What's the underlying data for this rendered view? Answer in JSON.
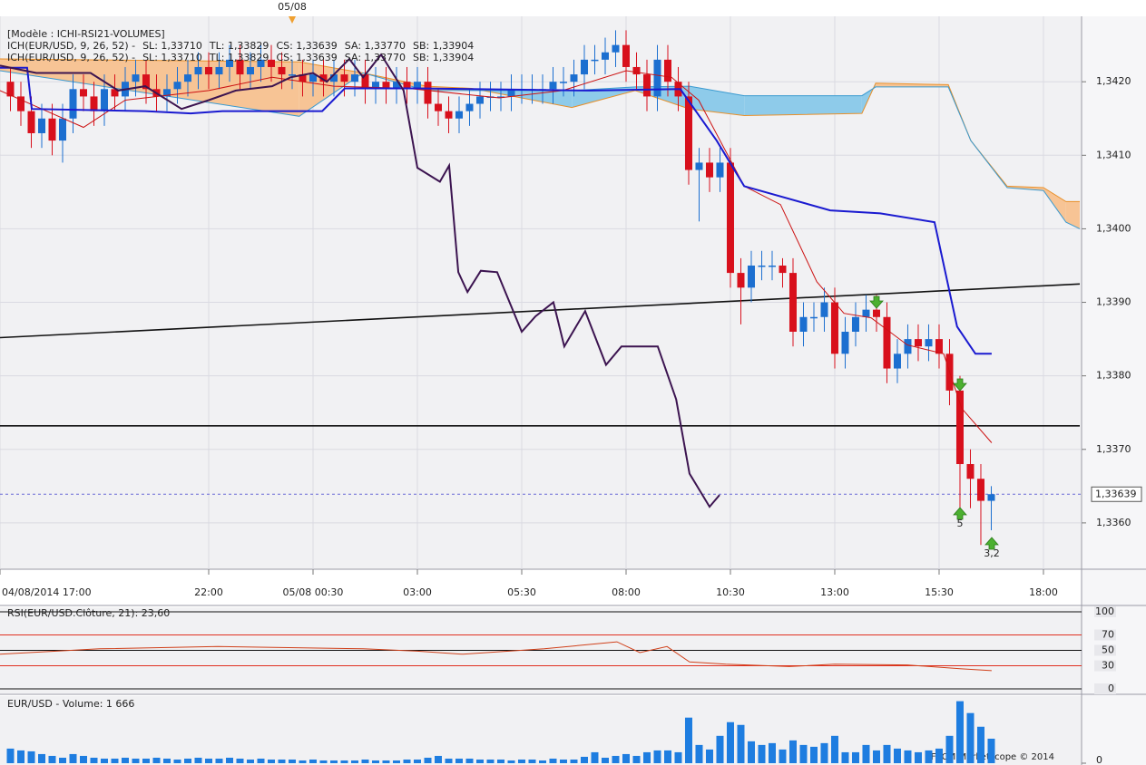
{
  "header": {
    "model": "[Modèle : ICHI-RSI21-VOLUMES]"
  },
  "footer": {
    "copyright": "FXCM Marketscope © 2014"
  },
  "chart_data": [
    {
      "type": "candlestick",
      "legend": [
        {
          "text": "ICH(EUR/USD, 9, 26, 52) -",
          "color": "#cc1111"
        },
        {
          "text": "SL: 1,33710",
          "color": "#cc1111"
        },
        {
          "text": "TL: 1,33829",
          "color": "#1a1ad0"
        },
        {
          "text": "CS: 1,33639",
          "color": "#3c1450"
        },
        {
          "text": "SA: 1,33770",
          "color": "#e8902a"
        },
        {
          "text": "SB: 1,33904",
          "color": "#3a9ad0"
        }
      ],
      "date_marker": {
        "value": 7,
        "label": "05/08"
      },
      "annotations": [
        "5",
        "3,2"
      ],
      "colors": {
        "up": "#1c6fd0",
        "down": "#d8101c"
      },
      "x": [
        0.25,
        0.5,
        0.75,
        1,
        1.25,
        1.5,
        1.75,
        2,
        2.25,
        2.5,
        2.75,
        3,
        3.25,
        3.5,
        3.75,
        4,
        4.25,
        4.5,
        4.75,
        5,
        5.25,
        5.5,
        5.75,
        6,
        6.25,
        6.5,
        6.75,
        7,
        7.25,
        7.5,
        7.75,
        8,
        8.25,
        8.5,
        8.75,
        9,
        9.25,
        9.5,
        9.75,
        10,
        10.25,
        10.5,
        10.75,
        11,
        11.25,
        11.5,
        11.75,
        12,
        12.25,
        12.5,
        12.75,
        13,
        13.25,
        13.5,
        13.75,
        14,
        14.25,
        14.5,
        14.75,
        15,
        15.25,
        15.5,
        15.75,
        16,
        16.25,
        16.5,
        16.75,
        17,
        17.25,
        17.5,
        17.75,
        18,
        18.25,
        18.5,
        18.75,
        19,
        19.25,
        19.5,
        19.75,
        20,
        20.25,
        20.5,
        20.75,
        21,
        21.25,
        21.5,
        21.75,
        22,
        22.25,
        22.5,
        22.75,
        23,
        23.25,
        23.5,
        23.75
      ],
      "open": [
        1.342,
        1.3418,
        1.3416,
        1.3413,
        1.3415,
        1.3412,
        1.3415,
        1.3419,
        1.3418,
        1.3416,
        1.3419,
        1.3418,
        1.342,
        1.3421,
        1.3419,
        1.3418,
        1.3419,
        1.342,
        1.3421,
        1.3422,
        1.3421,
        1.3422,
        1.3423,
        1.3421,
        1.3422,
        1.3423,
        1.3422,
        1.3421,
        1.3421,
        1.342,
        1.3421,
        1.342,
        1.3421,
        1.342,
        1.3421,
        1.3419,
        1.342,
        1.3419,
        1.342,
        1.3419,
        1.342,
        1.3417,
        1.3416,
        1.3415,
        1.3416,
        1.3417,
        1.3418,
        1.3418,
        1.3418,
        1.3419,
        1.3419,
        1.3419,
        1.3419,
        1.342,
        1.342,
        1.3421,
        1.3423,
        1.3423,
        1.3424,
        1.3425,
        1.3422,
        1.3421,
        1.3418,
        1.3423,
        1.342,
        1.3418,
        1.3408,
        1.3409,
        1.3407,
        1.3409,
        1.3394,
        1.3392,
        1.3395,
        1.3395,
        1.3395,
        1.3394,
        1.3386,
        1.3388,
        1.3388,
        1.339,
        1.3383,
        1.3386,
        1.3388,
        1.3389,
        1.3388,
        1.3381,
        1.3383,
        1.3385,
        1.3384,
        1.3385,
        1.3383,
        1.3378,
        1.3368,
        1.3366,
        1.3363
      ],
      "high": [
        1.3422,
        1.342,
        1.3418,
        1.3417,
        1.3417,
        1.3417,
        1.3421,
        1.3421,
        1.342,
        1.3421,
        1.3421,
        1.3422,
        1.3423,
        1.3423,
        1.3421,
        1.3421,
        1.3422,
        1.3423,
        1.3424,
        1.3424,
        1.3424,
        1.3425,
        1.3425,
        1.3424,
        1.3425,
        1.3425,
        1.3424,
        1.3423,
        1.3423,
        1.3423,
        1.3423,
        1.3423,
        1.3423,
        1.3423,
        1.3423,
        1.3422,
        1.3422,
        1.3422,
        1.3422,
        1.3422,
        1.3422,
        1.3419,
        1.3418,
        1.3418,
        1.3419,
        1.342,
        1.342,
        1.342,
        1.3421,
        1.3421,
        1.3421,
        1.3421,
        1.3422,
        1.3422,
        1.3423,
        1.3425,
        1.3425,
        1.3426,
        1.3427,
        1.3427,
        1.3424,
        1.3423,
        1.3425,
        1.3425,
        1.3422,
        1.342,
        1.3411,
        1.3411,
        1.3411,
        1.3411,
        1.3396,
        1.3397,
        1.3397,
        1.3397,
        1.3396,
        1.3396,
        1.339,
        1.339,
        1.3392,
        1.3392,
        1.3388,
        1.339,
        1.3391,
        1.3391,
        1.339,
        1.3385,
        1.3387,
        1.3387,
        1.3387,
        1.3387,
        1.3385,
        1.338,
        1.337,
        1.3368,
        1.3365
      ],
      "low": [
        1.3416,
        1.3414,
        1.3411,
        1.3411,
        1.341,
        1.3409,
        1.3413,
        1.3416,
        1.3414,
        1.3414,
        1.3416,
        1.3416,
        1.3418,
        1.3417,
        1.3416,
        1.3416,
        1.3417,
        1.3418,
        1.3419,
        1.3419,
        1.3419,
        1.342,
        1.3419,
        1.3419,
        1.342,
        1.342,
        1.3419,
        1.3419,
        1.3418,
        1.3418,
        1.3418,
        1.3418,
        1.3418,
        1.3418,
        1.3417,
        1.3417,
        1.3417,
        1.3417,
        1.3417,
        1.3417,
        1.3415,
        1.3414,
        1.3413,
        1.3413,
        1.3414,
        1.3415,
        1.3416,
        1.3416,
        1.3416,
        1.3417,
        1.3417,
        1.3417,
        1.3417,
        1.3418,
        1.3418,
        1.3419,
        1.3421,
        1.3421,
        1.3422,
        1.342,
        1.3419,
        1.3416,
        1.3416,
        1.3418,
        1.3416,
        1.3406,
        1.3401,
        1.3405,
        1.3405,
        1.3392,
        1.3387,
        1.339,
        1.3393,
        1.3393,
        1.3392,
        1.3384,
        1.3384,
        1.3386,
        1.3386,
        1.3381,
        1.3381,
        1.3384,
        1.3386,
        1.3386,
        1.3379,
        1.3379,
        1.3381,
        1.3382,
        1.3382,
        1.3381,
        1.3376,
        1.3362,
        1.3362,
        1.3357,
        1.3359
      ],
      "close": [
        1.3418,
        1.3416,
        1.3413,
        1.3415,
        1.3412,
        1.3415,
        1.3419,
        1.3418,
        1.3416,
        1.3419,
        1.3418,
        1.342,
        1.3421,
        1.3419,
        1.3418,
        1.3419,
        1.342,
        1.3421,
        1.3422,
        1.3421,
        1.3422,
        1.3423,
        1.3421,
        1.3422,
        1.3423,
        1.3422,
        1.3421,
        1.3421,
        1.342,
        1.3421,
        1.342,
        1.3421,
        1.342,
        1.3421,
        1.3419,
        1.342,
        1.3419,
        1.342,
        1.3419,
        1.342,
        1.3417,
        1.3416,
        1.3415,
        1.3416,
        1.3417,
        1.3418,
        1.3418,
        1.3418,
        1.3419,
        1.3419,
        1.3419,
        1.3419,
        1.342,
        1.342,
        1.3421,
        1.3423,
        1.3423,
        1.3424,
        1.3425,
        1.3422,
        1.3421,
        1.3418,
        1.3423,
        1.342,
        1.3418,
        1.3408,
        1.3409,
        1.3407,
        1.3409,
        1.3394,
        1.3392,
        1.3395,
        1.3395,
        1.3395,
        1.3394,
        1.3386,
        1.3388,
        1.3388,
        1.339,
        1.3383,
        1.3386,
        1.3388,
        1.3389,
        1.3388,
        1.3381,
        1.3383,
        1.3385,
        1.3384,
        1.3385,
        1.3383,
        1.3378,
        1.3368,
        1.3366,
        1.3363,
        1.33639
      ],
      "cloud": {
        "x": [
          0,
          7.17,
          8.7,
          10.22,
          11.3,
          13.7,
          15.22,
          16.52,
          17.83,
          20.65,
          20.98,
          22.72,
          23.26,
          24.13,
          25.0,
          25.54,
          25.87
        ],
        "sa": [
          1.34231,
          1.34227,
          1.34212,
          1.34194,
          1.34191,
          1.34165,
          1.34188,
          1.34163,
          1.34154,
          1.34157,
          1.34198,
          1.34196,
          1.3412,
          1.34058,
          1.34056,
          1.34037,
          1.34037
        ],
        "sb": [
          1.34215,
          1.34153,
          1.34212,
          1.34188,
          1.34188,
          1.34188,
          1.34193,
          1.34194,
          1.34181,
          1.34181,
          1.34193,
          1.34193,
          1.3412,
          1.34056,
          1.34052,
          1.34009,
          1.34
        ],
        "sa_color": "#e8902a",
        "sb_color": "#3a9ad0",
        "up_fill": "#f7c495",
        "down_fill": "#8ecbea"
      },
      "lines": [
        {
          "color": "#cc1111",
          "width": 1,
          "x": [
            0,
            1,
            2,
            3,
            5,
            6.52,
            8,
            9.78,
            11.96,
            13.48,
            15,
            16.09,
            16.74,
            17.83,
            18.7,
            19.57,
            20.22,
            20.87,
            21.74,
            22.61,
            23.04,
            23.76
          ],
          "values": [
            1.34188,
            1.34163,
            1.34138,
            1.34175,
            1.34188,
            1.34206,
            1.34194,
            1.34191,
            1.34178,
            1.34188,
            1.34215,
            1.34206,
            1.34175,
            1.34058,
            1.34033,
            1.33928,
            1.33885,
            1.33879,
            1.33842,
            1.3383,
            1.33756,
            1.33709
          ]
        },
        {
          "color": "#1a1ad0",
          "width": 2,
          "x": [
            0,
            0.65,
            0.76,
            3.48,
            4.57,
            5.33,
            7.72,
            8.26,
            10,
            14.13,
            16.3,
            17.17,
            17.83,
            19.89,
            21.09,
            22.39,
            22.93,
            23.37,
            23.76
          ],
          "values": [
            1.34219,
            1.34219,
            1.34163,
            1.3416,
            1.34157,
            1.3416,
            1.3416,
            1.34191,
            1.34191,
            1.34188,
            1.3419,
            1.3412,
            1.34058,
            1.34025,
            1.34021,
            1.34009,
            1.33867,
            1.3383,
            1.3383
          ]
        },
        {
          "color": "#3c1450",
          "width": 2,
          "x": [
            0,
            0.87,
            2.17,
            2.83,
            3.48,
            4.35,
            5,
            5.65,
            6.52,
            6.96,
            7.5,
            7.83,
            8.37,
            8.7,
            9.13,
            9.67,
            10,
            10.54,
            10.76,
            10.98,
            11.2,
            11.52,
            11.91,
            12.5,
            12.83,
            13.26,
            13.52,
            14.02,
            14.52,
            14.89,
            15.76,
            16.2,
            16.52,
            17,
            17.24
          ],
          "values": [
            1.34222,
            1.34212,
            1.34212,
            1.34188,
            1.34194,
            1.34163,
            1.34175,
            1.34188,
            1.34194,
            1.34206,
            1.34212,
            1.342,
            1.34231,
            1.34206,
            1.34237,
            1.34188,
            1.34083,
            1.34064,
            1.34086,
            1.33941,
            1.33914,
            1.33943,
            1.33941,
            1.3386,
            1.33881,
            1.339,
            1.3384,
            1.33888,
            1.33815,
            1.3384,
            1.3384,
            1.33768,
            1.33667,
            1.33622,
            1.33638
          ]
        }
      ],
      "trend_lines": [
        {
          "color": "#111111",
          "x": [
            0,
            25.87
          ],
          "values": [
            1.33852,
            1.33925
          ]
        },
        {
          "color": "#111111",
          "x": [
            0,
            25.87
          ],
          "values": [
            1.33732,
            1.33732
          ]
        }
      ],
      "last_price": {
        "value": 1.33639,
        "label": "1,33639"
      },
      "xlim": [
        0,
        25.87
      ],
      "ylim": [
        1.33537,
        1.34289
      ],
      "xticks": [
        {
          "value": 0,
          "label": "04/08/2014 17:00"
        },
        {
          "value": 5,
          "label": "22:00"
        },
        {
          "value": 7.5,
          "label": "05/08 00:30"
        },
        {
          "value": 10,
          "label": "03:00"
        },
        {
          "value": 12.5,
          "label": "05:30"
        },
        {
          "value": 15,
          "label": "08:00"
        },
        {
          "value": 17.5,
          "label": "10:30"
        },
        {
          "value": 20,
          "label": "13:00"
        },
        {
          "value": 22.5,
          "label": "15:30"
        },
        {
          "value": 25,
          "label": "18:00"
        }
      ],
      "yticks": [
        {
          "value": 1.342,
          "label": "1,3420"
        },
        {
          "value": 1.341,
          "label": "1,3410"
        },
        {
          "value": 1.34,
          "label": "1,3400"
        },
        {
          "value": 1.339,
          "label": "1,3390"
        },
        {
          "value": 1.338,
          "label": "1,3380"
        },
        {
          "value": 1.337,
          "label": "1,3370"
        },
        {
          "value": 1.336,
          "label": "1,3360"
        }
      ],
      "grid": true
    },
    {
      "type": "line",
      "title": "RSI(EUR/USD.Clôture, 21): 23,60",
      "color": "#d0401a",
      "x": [
        0,
        2.39,
        5.22,
        8.7,
        10,
        11.09,
        13.04,
        14.78,
        15.33,
        15.98,
        16.52,
        17.39,
        18.91,
        20,
        21.74,
        23.04,
        23.76
      ],
      "values": [
        45,
        52,
        55,
        52,
        49,
        45,
        52,
        61,
        47,
        55,
        35,
        32,
        29,
        32,
        31,
        26,
        23.6
      ],
      "xlim": [
        0,
        25.87
      ],
      "ylim": [
        0,
        100
      ],
      "yticks": [
        100,
        70,
        50,
        30,
        0
      ],
      "level_colors": [
        "#111111",
        "#e03020",
        "#111111",
        "#e03020",
        "#111111"
      ]
    },
    {
      "type": "bar",
      "title": "EUR/USD - Volume: 1 666",
      "color": "#1e7de0",
      "x": [
        0.25,
        0.5,
        0.75,
        1,
        1.25,
        1.5,
        1.75,
        2,
        2.25,
        2.5,
        2.75,
        3,
        3.25,
        3.5,
        3.75,
        4,
        4.25,
        4.5,
        4.75,
        5,
        5.25,
        5.5,
        5.75,
        6,
        6.25,
        6.5,
        6.75,
        7,
        7.25,
        7.5,
        7.75,
        8,
        8.25,
        8.5,
        8.75,
        9,
        9.25,
        9.5,
        9.75,
        10,
        10.25,
        10.5,
        10.75,
        11,
        11.25,
        11.5,
        11.75,
        12,
        12.25,
        12.5,
        12.75,
        13,
        13.25,
        13.5,
        13.75,
        14,
        14.25,
        14.5,
        14.75,
        15,
        15.25,
        15.5,
        15.75,
        16,
        16.25,
        16.5,
        16.75,
        17,
        17.25,
        17.5,
        17.75,
        18,
        18.25,
        18.5,
        18.75,
        19,
        19.25,
        19.5,
        19.75,
        20,
        20.25,
        20.5,
        20.75,
        21,
        21.25,
        21.5,
        21.75,
        22,
        22.25,
        22.5,
        22.75,
        23,
        23.25,
        23.5,
        23.75
      ],
      "values": [
        992,
        868,
        806,
        620,
        496,
        372,
        620,
        496,
        372,
        310,
        310,
        372,
        310,
        310,
        372,
        310,
        248,
        310,
        372,
        310,
        310,
        372,
        310,
        248,
        310,
        248,
        248,
        248,
        186,
        248,
        186,
        186,
        186,
        186,
        248,
        186,
        186,
        186,
        248,
        248,
        372,
        496,
        310,
        310,
        310,
        248,
        248,
        248,
        186,
        248,
        248,
        186,
        310,
        248,
        248,
        434,
        744,
        372,
        496,
        620,
        496,
        744,
        868,
        868,
        744,
        3100,
        1240,
        930,
        1860,
        2790,
        2604,
        1488,
        1240,
        1364,
        930,
        1550,
        1240,
        1116,
        1364,
        1860,
        744,
        744,
        1240,
        868,
        1240,
        992,
        868,
        744,
        868,
        992,
        1860,
        4216,
        3410,
        2480,
        1666
      ],
      "xlim": [
        0,
        25.87
      ],
      "ylim": [
        0,
        4500
      ],
      "yticks": [
        0
      ]
    }
  ]
}
